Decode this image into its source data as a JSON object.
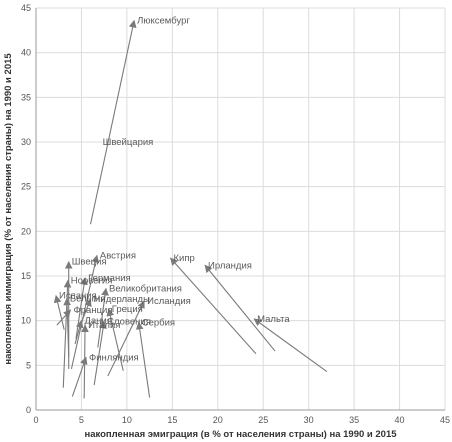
{
  "chart_data": {
    "type": "scatter",
    "xlabel": "накопленная эмиграция (в % от населения страны) на 1990 и 2015",
    "ylabel": "накопленная иммиграция (% от населения страны) на 1990 и 2015",
    "xlim": [
      0,
      45
    ],
    "ylim": [
      0,
      45
    ],
    "xticks": [
      0,
      5,
      10,
      15,
      20,
      25,
      30,
      35,
      40,
      45
    ],
    "yticks": [
      0,
      5,
      10,
      15,
      20,
      25,
      30,
      35,
      40,
      45
    ],
    "grid": true,
    "arrow_color": "#7a7a7a",
    "series": [
      {
        "name": "Люксембург",
        "x1": 6.0,
        "y1": 20.8,
        "x2": 10.8,
        "y2": 43.6,
        "label": "Люксембург"
      },
      {
        "name": "Швейцария",
        "x1": 7.0,
        "y1": 30.0,
        "x2": 7.0,
        "y2": 30.0,
        "label": "Швейцария"
      },
      {
        "name": "Кипр",
        "x1": 24.2,
        "y1": 6.3,
        "x2": 14.8,
        "y2": 17.0,
        "label": "Кипр"
      },
      {
        "name": "Ирландия",
        "x1": 26.3,
        "y1": 6.6,
        "x2": 18.6,
        "y2": 16.2,
        "label": "Ирландия"
      },
      {
        "name": "Мальта",
        "x1": 32.0,
        "y1": 4.3,
        "x2": 24.0,
        "y2": 10.2,
        "label": "Мальта"
      },
      {
        "name": "Швеция",
        "x1": 3.6,
        "y1": 4.6,
        "x2": 3.6,
        "y2": 16.6,
        "label": "Швеция"
      },
      {
        "name": "Австрия",
        "x1": 3.9,
        "y1": 4.6,
        "x2": 6.7,
        "y2": 17.3,
        "label": "Австрия"
      },
      {
        "name": "Норвегия",
        "x1": 3.0,
        "y1": 2.5,
        "x2": 3.5,
        "y2": 14.5,
        "label": "Норвегия"
      },
      {
        "name": "Германия",
        "x1": 4.4,
        "y1": 8.0,
        "x2": 5.4,
        "y2": 14.8,
        "label": "Германия"
      },
      {
        "name": "Испания",
        "x1": 3.1,
        "y1": 9.0,
        "x2": 2.2,
        "y2": 12.8,
        "label": "Испания"
      },
      {
        "name": "Бельгия",
        "x1": 3.6,
        "y1": 6.0,
        "x2": 3.4,
        "y2": 12.5,
        "label": "Бельгия"
      },
      {
        "name": "Франция",
        "x1": 2.3,
        "y1": 9.5,
        "x2": 3.8,
        "y2": 11.2,
        "label": "Франция"
      },
      {
        "name": "Великобритания",
        "x1": 6.8,
        "y1": 7.0,
        "x2": 7.7,
        "y2": 13.6,
        "label": "Великобритания"
      },
      {
        "name": "Нидерланды",
        "x1": 5.0,
        "y1": 9.8,
        "x2": 6.0,
        "y2": 12.4,
        "label": "Нидерланды"
      },
      {
        "name": "Исландия",
        "x1": 7.9,
        "y1": 3.8,
        "x2": 11.9,
        "y2": 12.2,
        "label": "Исландия"
      },
      {
        "name": "Греция",
        "x1": 9.6,
        "y1": 4.4,
        "x2": 8.0,
        "y2": 11.3,
        "label": "Греция"
      },
      {
        "name": "Словения",
        "x1": 6.4,
        "y1": 2.8,
        "x2": 7.5,
        "y2": 9.9,
        "label": "Словения"
      },
      {
        "name": "Дания",
        "x1": 4.3,
        "y1": 7.4,
        "x2": 5.0,
        "y2": 10.0,
        "label": "Дания"
      },
      {
        "name": "Италия",
        "x1": 5.3,
        "y1": 1.3,
        "x2": 5.4,
        "y2": 9.5,
        "label": "Италия"
      },
      {
        "name": "Сербия",
        "x1": 12.5,
        "y1": 1.4,
        "x2": 11.3,
        "y2": 9.8,
        "label": "Сербия"
      },
      {
        "name": "Финляндия",
        "x1": 4.0,
        "y1": 1.5,
        "x2": 5.5,
        "y2": 5.9,
        "label": "Финляндия"
      }
    ]
  }
}
